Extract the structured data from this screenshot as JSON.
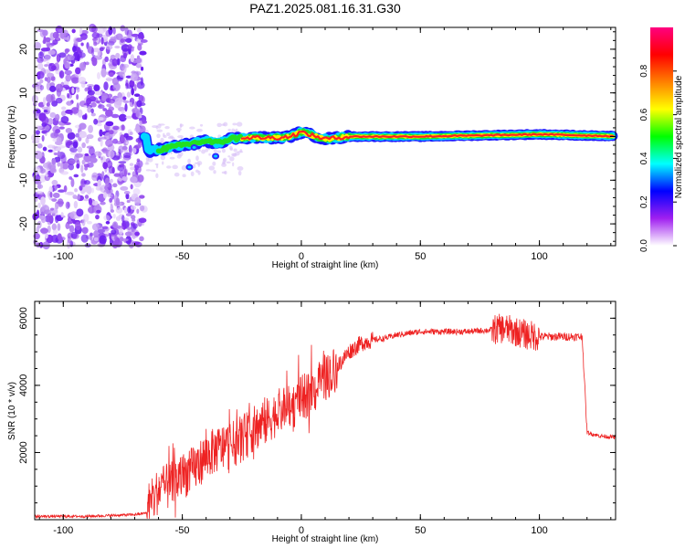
{
  "title": "PAZ1.2025.081.16.31.G30",
  "chart_data": [
    {
      "type": "heatmap",
      "name": "spectrogram",
      "xlabel": "Height of straight line (km)",
      "ylabel": "Frequency (Hz)",
      "xlim": [
        -112,
        132
      ],
      "ylim": [
        -25,
        25
      ],
      "xticks": [
        -100,
        -50,
        0,
        50,
        100
      ],
      "yticks": [
        -20,
        -10,
        0,
        10,
        20
      ],
      "colorbar": {
        "label": "Normalized spectral amplitude",
        "range": [
          0,
          1
        ],
        "ticks": [
          "0.0",
          "0.2",
          "0.4",
          "0.6",
          "0.8"
        ],
        "colors": [
          "#ffffff",
          "#a020f0",
          "#0000ff",
          "#00ffff",
          "#00ff00",
          "#ffff00",
          "#ff8000",
          "#ff0000",
          "#ff0080"
        ]
      },
      "trace": {
        "x": [
          -65,
          -60,
          -55,
          -50,
          -45,
          -40,
          -35,
          -30,
          -25,
          -20,
          -10,
          -5,
          0,
          5,
          10,
          15,
          20,
          50,
          80,
          100,
          130
        ],
        "frequency": [
          -3.5,
          -3.0,
          -2.5,
          -2,
          -1.5,
          -1,
          -1.5,
          -0.5,
          -0.3,
          -0.2,
          -0.3,
          0,
          1,
          0.2,
          -0.5,
          -0.3,
          0,
          0,
          0.3,
          0.5,
          0.1
        ]
      }
    },
    {
      "type": "line",
      "name": "snr",
      "xlabel": "Height of straight line (km)",
      "ylabel": "SNR (10 * v/v)",
      "xlim": [
        -112,
        132
      ],
      "ylim": [
        0,
        6500
      ],
      "xticks": [
        -100,
        -50,
        0,
        50,
        100
      ],
      "yticks": [
        2000,
        4000,
        6000
      ],
      "color": "#ee2222",
      "series": [
        {
          "name": "SNR",
          "x": [
            -112,
            -90,
            -70,
            -65,
            -60,
            -55,
            -50,
            -45,
            -40,
            -35,
            -30,
            -25,
            -20,
            -15,
            -10,
            -5,
            0,
            5,
            10,
            15,
            20,
            25,
            30,
            35,
            40,
            50,
            60,
            70,
            80,
            85,
            90,
            95,
            100,
            110,
            118,
            120,
            125,
            132
          ],
          "values": [
            100,
            100,
            150,
            200,
            900,
            1000,
            1300,
            1500,
            1900,
            2100,
            2200,
            2400,
            2700,
            2900,
            3200,
            3300,
            3600,
            3800,
            4200,
            4550,
            5000,
            5250,
            5350,
            5400,
            5500,
            5600,
            5600,
            5600,
            5650,
            5700,
            5600,
            5500,
            5450,
            5450,
            5450,
            2600,
            2500,
            2450
          ]
        }
      ]
    }
  ]
}
